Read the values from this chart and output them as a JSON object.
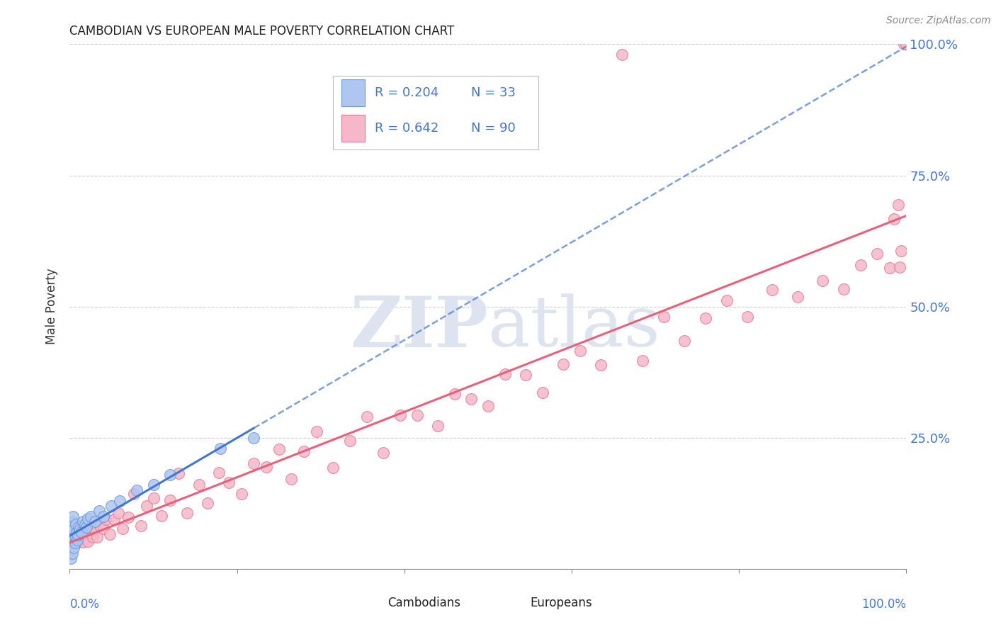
{
  "title": "CAMBODIAN VS EUROPEAN MALE POVERTY CORRELATION CHART",
  "source": "Source: ZipAtlas.com",
  "ylabel": "Male Poverty",
  "cambodian_color": "#aec6f0",
  "cambodian_edge_color": "#6699dd",
  "european_color": "#f4b8c8",
  "european_edge_color": "#e87898",
  "cambodian_line_color": "#4477cc",
  "european_line_color": "#e8607a",
  "axis_label_color": "#4477cc",
  "legend_text_color": "#4477cc",
  "legend_R_cambodian": "R = 0.204",
  "legend_N_cambodian": "N = 33",
  "legend_R_european": "R = 0.642",
  "legend_N_european": "N = 90",
  "cam_R": 0.204,
  "eur_R": 0.642,
  "cam_N": 33,
  "eur_N": 90,
  "xlim": [
    0,
    1.0
  ],
  "ylim": [
    0,
    1.0
  ]
}
